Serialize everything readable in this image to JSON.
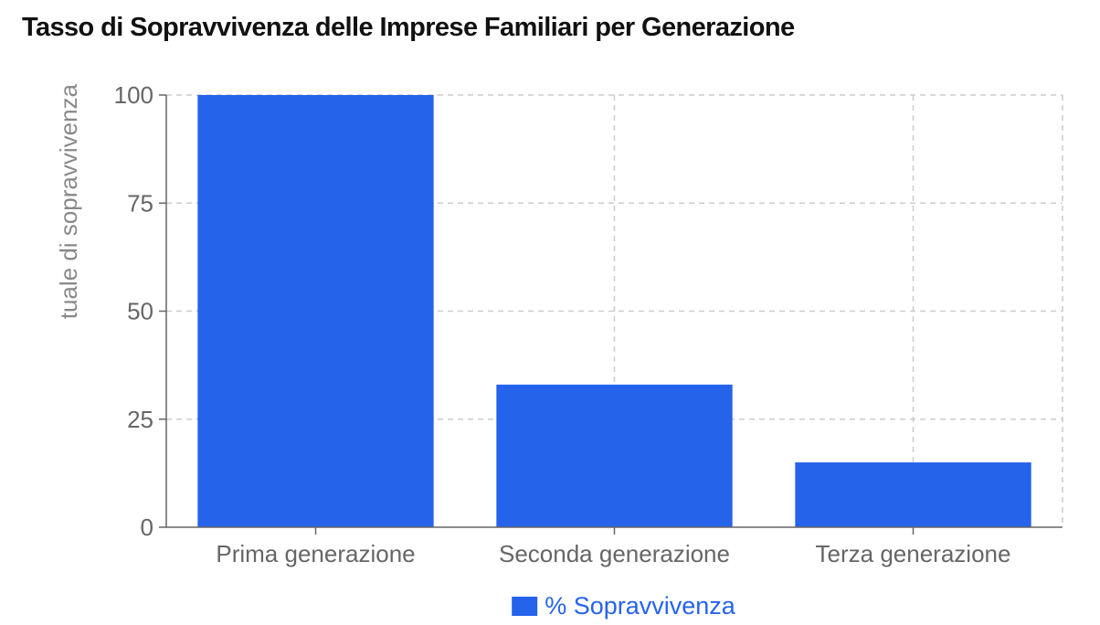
{
  "chart_data": {
    "type": "bar",
    "title": "Tasso di Sopravvivenza delle Imprese Familiari per Generazione",
    "xlabel": "",
    "ylabel": "Percentuale di sopravvivenza",
    "categories": [
      "Prima generazione",
      "Seconda generazione",
      "Terza generazione"
    ],
    "series": [
      {
        "name": "% Sopravvivenza",
        "values": [
          100,
          33,
          15
        ],
        "color": "#2563eb"
      }
    ],
    "ylim": [
      0,
      100
    ],
    "yticks": [
      0,
      25,
      50,
      75,
      100
    ],
    "grid": true,
    "legend_position": "bottom"
  }
}
